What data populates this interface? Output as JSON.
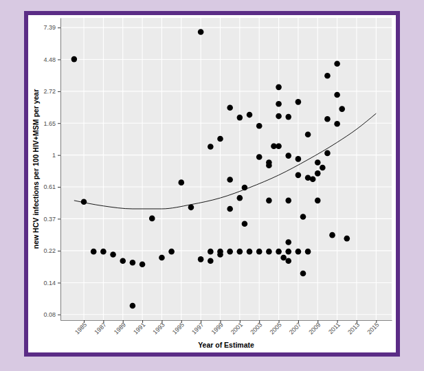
{
  "chart_data": {
    "type": "scatter",
    "x_label": "Year of Estimate",
    "y_label": "new HCV infections per 100 HIV+MSM per year",
    "log": "y",
    "grid": true,
    "xlim": [
      1982.6,
      2016.6
    ],
    "ylim": [
      0.075,
      8.6
    ],
    "xticks": [
      1985,
      1987,
      1989,
      1991,
      1993,
      1995,
      1997,
      1999,
      2001,
      2003,
      2005,
      2007,
      2009,
      2011,
      2013,
      2015
    ],
    "yticks": [
      {
        "value": 0.082,
        "label": "0.08"
      },
      {
        "value": 0.135,
        "label": "0.14"
      },
      {
        "value": 0.223,
        "label": "0.22"
      },
      {
        "value": 0.368,
        "label": "0.37"
      },
      {
        "value": 0.607,
        "label": "0.61"
      },
      1,
      {
        "value": 1.649,
        "label": "1.65"
      },
      {
        "value": 2.718,
        "label": "2.72"
      },
      {
        "value": 4.482,
        "label": "4.48"
      },
      {
        "value": 7.389,
        "label": "7.39"
      }
    ],
    "series": [
      {
        "type": "scatter",
        "color": "#000000",
        "marker": "circle",
        "x": [
          1984,
          1985,
          1986,
          1987,
          1988,
          1989,
          1990,
          1990,
          1991,
          1992,
          1993,
          1994,
          1995,
          1996,
          1997,
          1997,
          1998,
          1998,
          1998,
          1999,
          1999,
          1999,
          2000,
          2000,
          2000,
          2000,
          2001,
          2001,
          2001,
          2001.5,
          2001.5,
          2002,
          2002,
          2003,
          2003,
          2003,
          2004,
          2004,
          2004,
          2004,
          2004.5,
          2005,
          2005,
          2005,
          2005,
          2005,
          2005.5,
          2006,
          2006,
          2006,
          2006,
          2006,
          2006,
          2007,
          2007,
          2007,
          2007,
          2007.5,
          2007.5,
          2008,
          2008,
          2008,
          2008.5,
          2009,
          2009,
          2009,
          2009.5,
          2010,
          2010,
          2010,
          2010.5,
          2011,
          2011,
          2011,
          2011.5,
          2012
        ],
        "values": [
          4.5,
          0.48,
          0.22,
          0.22,
          0.21,
          0.19,
          0.185,
          0.094,
          0.18,
          0.37,
          0.2,
          0.22,
          0.65,
          0.44,
          6.9,
          0.195,
          1.14,
          0.19,
          0.22,
          1.29,
          0.22,
          0.21,
          2.1,
          0.68,
          0.43,
          0.22,
          1.8,
          0.51,
          0.22,
          0.6,
          0.34,
          1.88,
          0.22,
          1.58,
          0.97,
          0.22,
          0.49,
          0.89,
          0.85,
          0.22,
          1.15,
          1.15,
          2.9,
          2.23,
          1.84,
          0.22,
          0.2,
          1.82,
          0.99,
          0.49,
          0.255,
          0.22,
          0.19,
          2.3,
          0.94,
          0.73,
          0.22,
          0.38,
          0.156,
          1.38,
          0.7,
          0.22,
          0.685,
          0.49,
          0.89,
          0.75,
          0.82,
          3.47,
          1.76,
          1.03,
          0.285,
          4.19,
          2.57,
          1.63,
          2.06,
          0.27
        ]
      },
      {
        "type": "line",
        "color": "#000000",
        "line_style": "solid",
        "x": [
          1984,
          1987,
          1990,
          1993,
          1996,
          1999,
          2002,
          2005,
          2008,
          2011,
          2013,
          2015
        ],
        "values": [
          0.49,
          0.45,
          0.43,
          0.43,
          0.46,
          0.51,
          0.6,
          0.73,
          0.93,
          1.22,
          1.5,
          1.92
        ]
      }
    ]
  }
}
